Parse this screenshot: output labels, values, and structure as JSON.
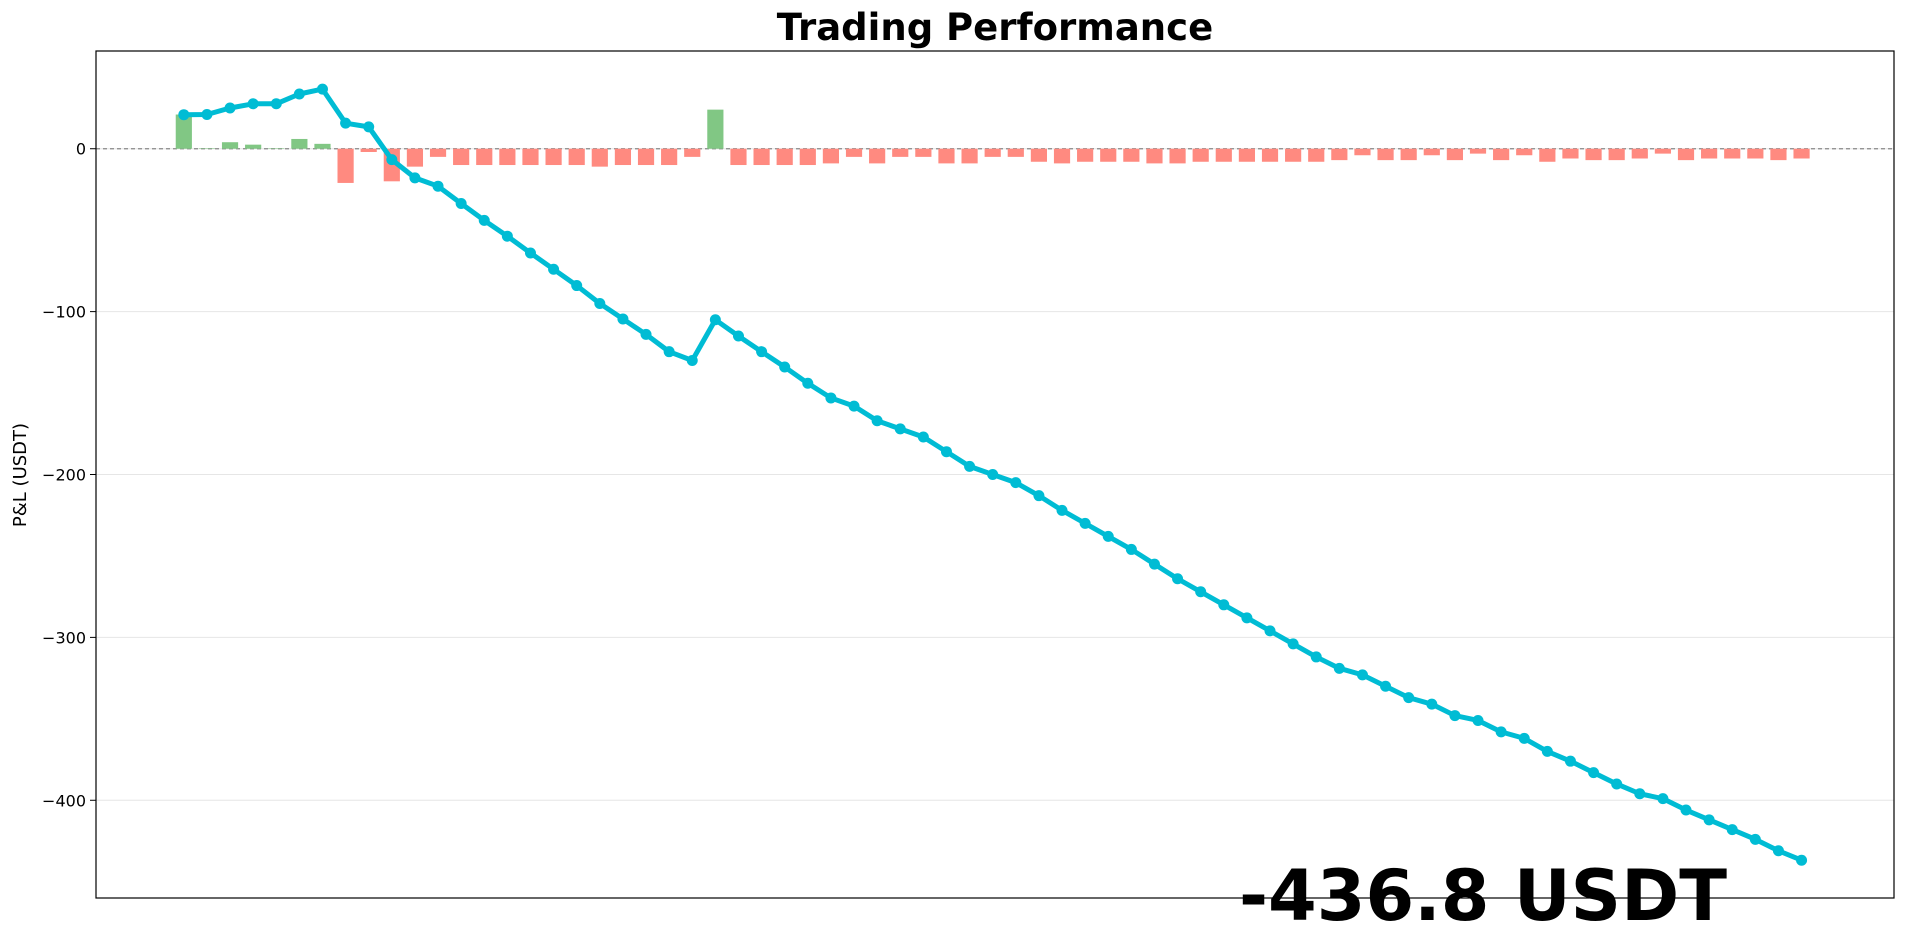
{
  "chart_data": {
    "type": "combo",
    "title": "Trading Performance",
    "ylabel": "P&L (USDT)",
    "x": [
      0,
      1,
      2,
      3,
      4,
      5,
      6,
      7,
      8,
      9,
      10,
      11,
      12,
      13,
      14,
      15,
      16,
      17,
      18,
      19,
      20,
      21,
      22,
      23,
      24,
      25,
      26,
      27,
      28,
      29,
      30,
      31,
      32,
      33,
      34,
      35,
      36,
      37,
      38,
      39,
      40,
      41,
      42,
      43,
      44,
      45,
      46,
      47,
      48,
      49,
      50,
      51,
      52,
      53,
      54,
      55,
      56,
      57,
      58,
      59,
      60,
      61,
      62,
      63,
      64,
      65,
      66,
      67,
      68,
      69,
      70
    ],
    "xlim": [
      -3.8,
      74
    ],
    "ylim": [
      -460,
      60
    ],
    "yticks": [
      {
        "value": -400,
        "label": "−400"
      },
      {
        "value": -300,
        "label": "−300"
      },
      {
        "value": -200,
        "label": "−200"
      },
      {
        "value": -100,
        "label": "−100"
      },
      0
    ],
    "grid": true,
    "zero_line": true,
    "series": [
      {
        "type": "bar",
        "color_positive": "#81c784",
        "color_negative": "#ff8a80",
        "values": [
          21,
          0.3,
          4,
          2.5,
          0.3,
          6,
          3,
          -21,
          -2,
          -20,
          -11,
          -5,
          -10,
          -10,
          -10,
          -10,
          -10,
          -10,
          -11,
          -10,
          -10,
          -10,
          -5,
          24,
          -10,
          -10,
          -10,
          -10,
          -9,
          -5,
          -9,
          -5,
          -5,
          -9,
          -9,
          -5,
          -5,
          -8,
          -9,
          -8,
          -8,
          -8,
          -9,
          -9,
          -8,
          -8,
          -8,
          -8,
          -8,
          -8,
          -7,
          -4,
          -7,
          -7,
          -4,
          -7,
          -3,
          -7,
          -4,
          -8,
          -6,
          -7,
          -7,
          -6,
          -3,
          -7,
          -6,
          -6,
          -6,
          -7,
          -6
        ]
      },
      {
        "type": "line",
        "color": "#00bcd4",
        "values": [
          20.9,
          21,
          25,
          27.6,
          27.6,
          33.6,
          36.6,
          15.7,
          13.4,
          -6.7,
          -17.9,
          -23,
          -33.6,
          -44,
          -53.7,
          -64,
          -74,
          -84,
          -95,
          -104.5,
          -114,
          -124.6,
          -130,
          -105,
          -115,
          -124.6,
          -134,
          -144,
          -153,
          -158,
          -167,
          -172,
          -177,
          -186,
          -195,
          -200,
          -205,
          -213,
          -222,
          -230,
          -238,
          -246,
          -255,
          -264,
          -272,
          -280,
          -288,
          -296,
          -304,
          -312,
          -319,
          -323,
          -330,
          -337,
          -341,
          -348,
          -351,
          -358,
          -362,
          -370,
          -376,
          -383,
          -390,
          -396,
          -399,
          -406,
          -412,
          -418,
          -424,
          -431,
          -436.8
        ]
      }
    ],
    "annotation": {
      "text": "-436.8 USDT",
      "color": "#ff4d4d"
    }
  }
}
